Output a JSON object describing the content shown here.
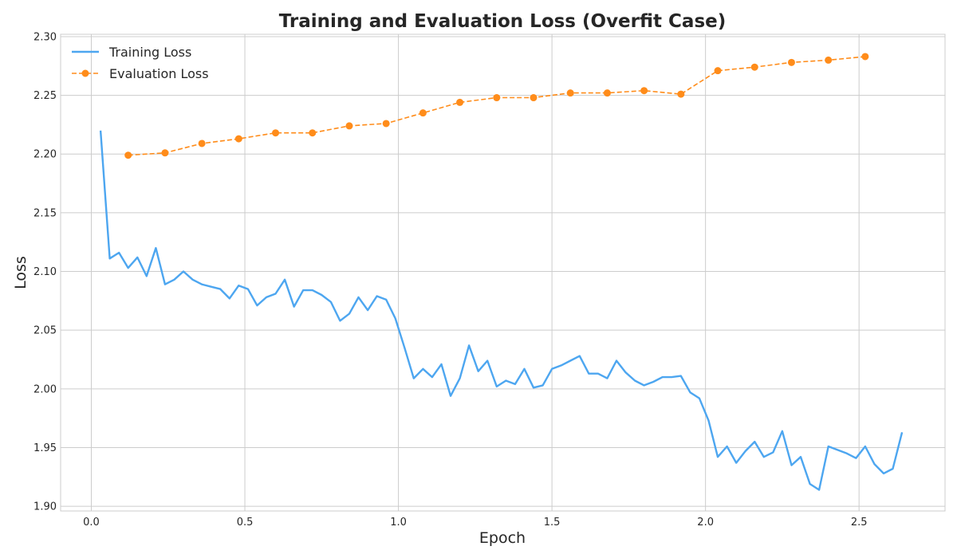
{
  "chart_data": {
    "type": "line",
    "title": "Training and Evaluation Loss (Overfit Case)",
    "xlabel": "Epoch",
    "ylabel": "Loss",
    "xlim": [
      -0.1,
      2.78
    ],
    "ylim": [
      1.896,
      2.302
    ],
    "xticks": [
      0.0,
      0.5,
      1.0,
      1.5,
      2.0,
      2.5
    ],
    "xtick_labels": [
      "0.0",
      "0.5",
      "1.0",
      "1.5",
      "2.0",
      "2.5"
    ],
    "yticks": [
      1.9,
      1.95,
      2.0,
      2.05,
      2.1,
      2.15,
      2.2,
      2.25,
      2.3
    ],
    "ytick_labels": [
      "1.90",
      "1.95",
      "2.00",
      "2.05",
      "2.10",
      "2.15",
      "2.20",
      "2.25",
      "2.30"
    ],
    "grid": true,
    "legend_position": "top-left",
    "series": [
      {
        "name": "Training Loss",
        "color": "#4da6f0",
        "style": "solid",
        "marker": "none",
        "x": [
          0.03,
          0.06,
          0.09,
          0.12,
          0.15,
          0.18,
          0.21,
          0.24,
          0.27,
          0.3,
          0.33,
          0.36,
          0.39,
          0.42,
          0.45,
          0.48,
          0.51,
          0.54,
          0.57,
          0.6,
          0.63,
          0.66,
          0.69,
          0.72,
          0.75,
          0.78,
          0.81,
          0.84,
          0.87,
          0.9,
          0.93,
          0.96,
          0.99,
          1.02,
          1.05,
          1.08,
          1.11,
          1.14,
          1.17,
          1.2,
          1.23,
          1.26,
          1.29,
          1.32,
          1.35,
          1.38,
          1.41,
          1.44,
          1.47,
          1.5,
          1.53,
          1.56,
          1.59,
          1.62,
          1.65,
          1.68,
          1.71,
          1.74,
          1.77,
          1.8,
          1.83,
          1.86,
          1.89,
          1.92,
          1.95,
          1.98,
          2.01,
          2.04,
          2.07,
          2.1,
          2.13,
          2.16,
          2.19,
          2.22,
          2.25,
          2.28,
          2.31,
          2.34,
          2.37,
          2.4,
          2.43,
          2.46,
          2.49,
          2.52,
          2.55,
          2.58,
          2.61,
          2.64
        ],
        "y": [
          2.22,
          2.111,
          2.116,
          2.103,
          2.112,
          2.096,
          2.12,
          2.089,
          2.093,
          2.1,
          2.093,
          2.089,
          2.087,
          2.085,
          2.077,
          2.088,
          2.085,
          2.071,
          2.078,
          2.081,
          2.093,
          2.07,
          2.084,
          2.084,
          2.08,
          2.074,
          2.058,
          2.064,
          2.078,
          2.067,
          2.079,
          2.076,
          2.06,
          2.035,
          2.009,
          2.017,
          2.01,
          2.021,
          1.994,
          2.009,
          2.037,
          2.015,
          2.024,
          2.002,
          2.007,
          2.004,
          2.017,
          2.001,
          2.003,
          2.017,
          2.02,
          2.024,
          2.028,
          2.013,
          2.013,
          2.009,
          2.024,
          2.014,
          2.007,
          2.003,
          2.006,
          2.01,
          2.01,
          2.011,
          1.997,
          1.992,
          1.973,
          1.942,
          1.951,
          1.937,
          1.947,
          1.955,
          1.942,
          1.946,
          1.964,
          1.935,
          1.942,
          1.919,
          1.914,
          1.951,
          1.948,
          1.945,
          1.941,
          1.951,
          1.936,
          1.928,
          1.932,
          1.963
        ]
      },
      {
        "name": "Evaluation Loss",
        "color": "#ff8c1a",
        "style": "dashed",
        "marker": "circle",
        "x": [
          0.12,
          0.24,
          0.36,
          0.48,
          0.6,
          0.72,
          0.84,
          0.96,
          1.08,
          1.2,
          1.32,
          1.44,
          1.56,
          1.68,
          1.8,
          1.92,
          2.04,
          2.16,
          2.28,
          2.4,
          2.52
        ],
        "y": [
          2.199,
          2.201,
          2.209,
          2.213,
          2.218,
          2.218,
          2.224,
          2.226,
          2.235,
          2.244,
          2.248,
          2.248,
          2.252,
          2.252,
          2.254,
          2.251,
          2.271,
          2.274,
          2.278,
          2.28,
          2.283
        ]
      }
    ]
  }
}
